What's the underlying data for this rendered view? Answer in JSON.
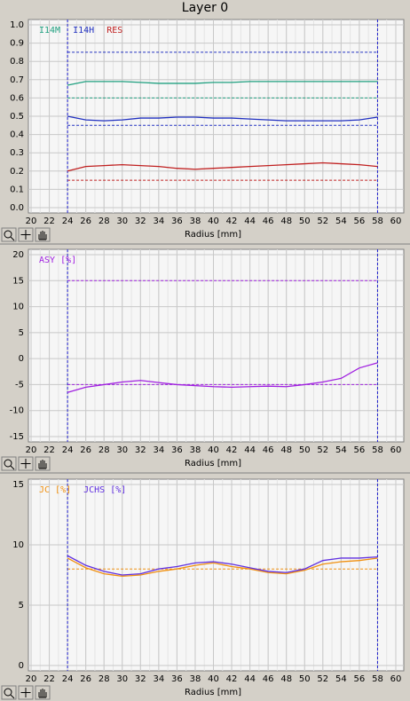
{
  "title": "Layer 0",
  "chart_data": [
    {
      "type": "line",
      "xlabel": "Radius [mm]",
      "x": [
        24,
        26,
        28,
        30,
        32,
        34,
        36,
        38,
        40,
        42,
        44,
        46,
        48,
        50,
        52,
        54,
        56,
        58
      ],
      "xlim": [
        20,
        60
      ],
      "xticks": [
        20,
        22,
        24,
        26,
        28,
        30,
        32,
        34,
        36,
        38,
        40,
        42,
        44,
        46,
        48,
        50,
        52,
        54,
        56,
        58,
        60
      ],
      "ylim": [
        0,
        1
      ],
      "yticks": [
        {
          "value": 0,
          "label": "0.0"
        },
        0.1,
        0.2,
        0.3,
        0.4,
        0.5,
        0.6,
        0.7,
        0.8,
        0.9,
        {
          "value": 1,
          "label": "1.0"
        }
      ],
      "grid": true,
      "series": [
        {
          "name": "I14M",
          "color": "#20a080",
          "values": [
            0.67,
            0.69,
            0.69,
            0.69,
            0.685,
            0.68,
            0.68,
            0.68,
            0.685,
            0.685,
            0.69,
            0.69,
            0.69,
            0.69,
            0.69,
            0.69,
            0.69,
            0.69
          ]
        },
        {
          "name": "I14H",
          "color": "#2030c0",
          "values": [
            0.5,
            0.48,
            0.475,
            0.48,
            0.49,
            0.49,
            0.495,
            0.495,
            0.49,
            0.49,
            0.485,
            0.48,
            0.475,
            0.475,
            0.475,
            0.475,
            0.48,
            0.495
          ]
        },
        {
          "name": "RES",
          "color": "#c02020",
          "values": [
            0.2,
            0.225,
            0.23,
            0.235,
            0.23,
            0.225,
            0.215,
            0.21,
            0.215,
            0.22,
            0.225,
            0.23,
            0.235,
            0.24,
            0.245,
            0.24,
            0.235,
            0.225
          ]
        }
      ],
      "hlines": [
        {
          "value": 0.85,
          "color": "#2030c0"
        },
        {
          "value": 0.6,
          "color": "#20a080"
        },
        {
          "value": 0.45,
          "color": "#2030c0"
        },
        {
          "value": 0.15,
          "color": "#c02020"
        }
      ],
      "vlines": [
        24,
        58
      ],
      "vline_color": "#2020d0"
    },
    {
      "type": "line",
      "xlabel": "Radius [mm]",
      "x": [
        24,
        26,
        28,
        30,
        32,
        34,
        36,
        38,
        40,
        42,
        44,
        46,
        48,
        50,
        52,
        54,
        56,
        58
      ],
      "xlim": [
        20,
        60
      ],
      "xticks": [
        20,
        22,
        24,
        26,
        28,
        30,
        32,
        34,
        36,
        38,
        40,
        42,
        44,
        46,
        48,
        50,
        52,
        54,
        56,
        58,
        60
      ],
      "ylim": [
        -15,
        20
      ],
      "yticks": [
        -15,
        -10,
        -5,
        0,
        5,
        10,
        15,
        20
      ],
      "grid": true,
      "series": [
        {
          "name": "ASY [%]",
          "color": "#a020e0",
          "values": [
            -6.5,
            -5.5,
            -5,
            -4.5,
            -4.2,
            -4.6,
            -5,
            -5.2,
            -5.4,
            -5.5,
            -5.4,
            -5.3,
            -5.4,
            -5,
            -4.5,
            -3.8,
            -1.8,
            -0.8
          ]
        }
      ],
      "hlines": [
        {
          "value": 15,
          "color": "#a020e0"
        },
        {
          "value": -5,
          "color": "#a020e0"
        }
      ],
      "vlines": [
        24,
        58
      ],
      "vline_color": "#2020d0"
    },
    {
      "type": "line",
      "xlabel": "Radius [mm]",
      "x": [
        24,
        26,
        28,
        30,
        32,
        34,
        36,
        38,
        40,
        42,
        44,
        46,
        48,
        50,
        52,
        54,
        56,
        58
      ],
      "xlim": [
        20,
        60
      ],
      "xticks": [
        20,
        22,
        24,
        26,
        28,
        30,
        32,
        34,
        36,
        38,
        40,
        42,
        44,
        46,
        48,
        50,
        52,
        54,
        56,
        58,
        60
      ],
      "ylim": [
        0,
        15
      ],
      "yticks": [
        0,
        5,
        10,
        15
      ],
      "grid": true,
      "series": [
        {
          "name": "JC [%]",
          "color": "#f09010",
          "values": [
            8.9,
            8.1,
            7.6,
            7.4,
            7.5,
            7.8,
            8.0,
            8.3,
            8.5,
            8.2,
            8.0,
            7.7,
            7.6,
            7.9,
            8.4,
            8.6,
            8.7,
            8.9
          ]
        },
        {
          "name": "JCHS [%]",
          "color": "#6030e0",
          "values": [
            9.1,
            8.3,
            7.8,
            7.5,
            7.6,
            8.0,
            8.2,
            8.5,
            8.6,
            8.4,
            8.1,
            7.8,
            7.7,
            8.0,
            8.7,
            8.9,
            8.9,
            9.0
          ]
        }
      ],
      "hlines": [
        {
          "value": 8,
          "color": "#f09010"
        }
      ],
      "vlines": [
        24,
        58
      ],
      "vline_color": "#2020d0"
    }
  ]
}
